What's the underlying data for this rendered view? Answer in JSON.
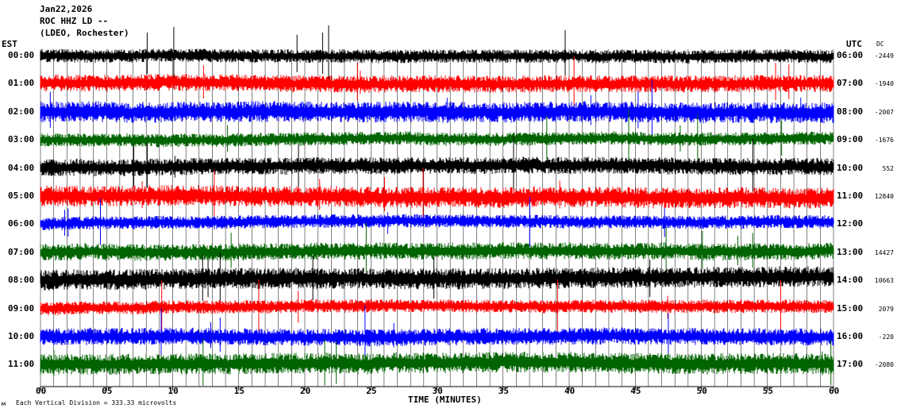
{
  "header": {
    "date": "Jan22,2026",
    "station": "ROC HHZ LD --",
    "location": "(LDEO, Rochester)"
  },
  "left_axis_title": "EST",
  "right_axis_title": "UTC",
  "dc_title": "DC",
  "footer": {
    "scale_note": "Each Vertical Division = 333.33 microvolts",
    "corner_mark": "м"
  },
  "colors": {
    "trace_cycle": [
      "#000000",
      "#ff0000",
      "#0000ff",
      "#006400"
    ],
    "grid": "#000000",
    "background": "#ffffff"
  },
  "chart_data": {
    "type": "line",
    "xlabel": "TIME (MINUTES)",
    "xlim": [
      0,
      60
    ],
    "x_ticks": [
      "00",
      "05",
      "10",
      "15",
      "20",
      "25",
      "30",
      "35",
      "40",
      "45",
      "50",
      "55",
      "60"
    ],
    "grid": true,
    "rows": [
      {
        "est": "00:00",
        "utc": "06:00",
        "dc": "-2449",
        "color": "black"
      },
      {
        "est": "01:00",
        "utc": "07:00",
        "dc": "-1940",
        "color": "red"
      },
      {
        "est": "02:00",
        "utc": "08:00",
        "dc": "-2007",
        "color": "blue"
      },
      {
        "est": "03:00",
        "utc": "09:00",
        "dc": "-1676",
        "color": "green"
      },
      {
        "est": "04:00",
        "utc": "10:00",
        "dc": "552",
        "color": "black"
      },
      {
        "est": "05:00",
        "utc": "11:00",
        "dc": "12840",
        "color": "red"
      },
      {
        "est": "06:00",
        "utc": "12:00",
        "dc": "",
        "color": "blue"
      },
      {
        "est": "07:00",
        "utc": "13:00",
        "dc": "14427",
        "color": "green"
      },
      {
        "est": "08:00",
        "utc": "14:00",
        "dc": "10663",
        "color": "black"
      },
      {
        "est": "09:00",
        "utc": "15:00",
        "dc": "2079",
        "color": "red"
      },
      {
        "est": "10:00",
        "utc": "16:00",
        "dc": "-220",
        "color": "blue"
      },
      {
        "est": "11:00",
        "utc": "17:00",
        "dc": "-2080",
        "color": "green"
      }
    ]
  }
}
